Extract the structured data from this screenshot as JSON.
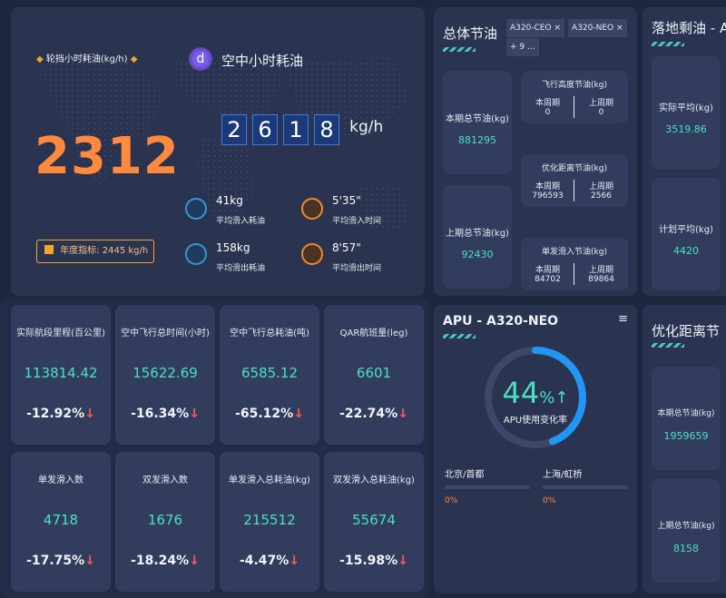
{
  "hero": {
    "left_label": "轮挡小时耗油(kg/h)",
    "big_value": "2312",
    "annual_label": "年度指标: 2445 kg/h",
    "air_title": "空中小时耗油",
    "digits": [
      "2",
      "6",
      "1",
      "8"
    ],
    "unit": "kg/h",
    "stats": [
      {
        "value": "41kg",
        "label": "平均滑入耗油"
      },
      {
        "value": "5'35\"",
        "label": "平均滑入时间"
      },
      {
        "value": "158kg",
        "label": "平均滑出耗油"
      },
      {
        "value": "8'57\"",
        "label": "平均滑出时间"
      }
    ]
  },
  "saving": {
    "title": "总体节油",
    "tags": [
      "A320-CEO ×",
      "A320-NEO ×",
      "+ 9 ..."
    ],
    "this_label": "本期总节油(kg)",
    "this_value": "881295",
    "last_label": "上期总节油(kg)",
    "last_value": "92430",
    "blocks": [
      {
        "title": "飞行高度节油(kg)",
        "a_label": "本周期",
        "a_val": "0",
        "b_label": "上周期",
        "b_val": "0"
      },
      {
        "title": "优化距离节油(kg)",
        "a_label": "本周期",
        "a_val": "796593",
        "b_label": "上周期",
        "b_val": "2566"
      },
      {
        "title": "单发滑入节油(kg)",
        "a_label": "本周期",
        "a_val": "84702",
        "b_label": "上周期",
        "b_val": "89864"
      }
    ]
  },
  "landing": {
    "title": "落地剩油 - A",
    "actual_label": "实际平均(kg)",
    "actual_value": "3519.86",
    "plan_label": "计划平均(kg)",
    "plan_value": "4420"
  },
  "kpis": [
    {
      "label": "实际航段里程(百公里)",
      "value": "113814.42",
      "change": "-12.92%"
    },
    {
      "label": "空中飞行总时间(小时)",
      "value": "15622.69",
      "change": "-16.34%"
    },
    {
      "label": "空中飞行总耗油(吨)",
      "value": "6585.12",
      "change": "-65.12%"
    },
    {
      "label": "QAR航班量(leg)",
      "value": "6601",
      "change": "-22.74%"
    },
    {
      "label": "单发滑入数",
      "value": "4718",
      "change": "-17.75%"
    },
    {
      "label": "双发滑入数",
      "value": "1676",
      "change": "-18.24%"
    },
    {
      "label": "单发滑入总耗油(kg)",
      "value": "215512",
      "change": "-4.47%"
    },
    {
      "label": "双发滑入总耗油(kg)",
      "value": "55674",
      "change": "-15.98%"
    }
  ],
  "apu": {
    "title": "APU - A320-NEO",
    "percent": "44",
    "percent_sign": "%",
    "ratio": 0.44,
    "label": "APU使用变化率",
    "airports": [
      {
        "name": "北京/首都",
        "value": "0%"
      },
      {
        "name": "上海/虹桥",
        "value": "0%"
      }
    ],
    "colors": {
      "ring": "#2196f3",
      "track": "#3d4868",
      "accent": "#49e0c6"
    }
  },
  "opt": {
    "title": "优化距离节",
    "this_label": "本期总节油(kg)",
    "this_value": "1959659",
    "last_label": "上期总节油(kg)",
    "last_value": "8158"
  },
  "icons": {
    "arrow_down": "↓",
    "arrow_up": "↑",
    "menu": "≡"
  }
}
